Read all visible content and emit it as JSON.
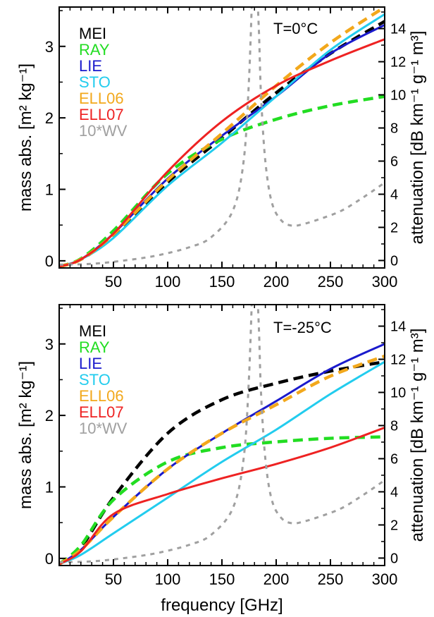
{
  "xlabel": "frequency [GHz]",
  "chart_data": [
    {
      "type": "line",
      "annotation": "T=0°C",
      "ylabel": "mass abs. [m² kg⁻¹]",
      "ylabel2": "attenuation [dB km⁻¹ g⁻¹ m³]",
      "xlim": [
        0,
        300
      ],
      "ylim": [
        -0.1,
        3.55
      ],
      "ylim2": [
        -0.45,
        15.3
      ],
      "xticks": [
        50,
        100,
        150,
        200,
        250,
        300
      ],
      "yticks": [
        0,
        1,
        2,
        3
      ],
      "yticks2": [
        0,
        2,
        4,
        6,
        8,
        10,
        12,
        14
      ],
      "grid": false,
      "legend_position": "top-left",
      "series": [
        {
          "name": "MEI",
          "color": "#000000",
          "dash": "long",
          "x": [
            0,
            20,
            50,
            100,
            150,
            200,
            250,
            300
          ],
          "y": [
            -0.08,
            0.02,
            0.35,
            1.1,
            1.72,
            2.35,
            2.9,
            3.35
          ]
        },
        {
          "name": "RAY",
          "color": "#22dd22",
          "dash": "long",
          "x": [
            0,
            20,
            50,
            100,
            150,
            200,
            250,
            300
          ],
          "y": [
            -0.08,
            0.03,
            0.42,
            1.22,
            1.7,
            1.98,
            2.17,
            2.3
          ]
        },
        {
          "name": "LIE",
          "color": "#1a1acc",
          "dash": "solid",
          "x": [
            0,
            20,
            50,
            100,
            150,
            200,
            250,
            300
          ],
          "y": [
            -0.08,
            0.02,
            0.38,
            1.15,
            1.75,
            2.3,
            2.9,
            3.3
          ]
        },
        {
          "name": "STO",
          "color": "#22ccee",
          "dash": "solid",
          "x": [
            0,
            20,
            50,
            100,
            150,
            200,
            250,
            300
          ],
          "y": [
            -0.08,
            0.02,
            0.32,
            1.05,
            1.65,
            2.3,
            2.95,
            3.45
          ]
        },
        {
          "name": "ELL06",
          "color": "#f2a81c",
          "dash": "long",
          "x": [
            0,
            20,
            50,
            100,
            150,
            200,
            250,
            300
          ],
          "y": [
            -0.08,
            0.02,
            0.37,
            1.13,
            1.78,
            2.45,
            3.05,
            3.55
          ]
        },
        {
          "name": "ELL07",
          "color": "#ee2222",
          "dash": "solid",
          "x": [
            0,
            20,
            50,
            100,
            150,
            200,
            250,
            300
          ],
          "y": [
            -0.08,
            0.02,
            0.38,
            1.25,
            1.95,
            2.45,
            2.8,
            3.1
          ]
        },
        {
          "name": "10*WV",
          "color": "#a0a0a0",
          "dash": "short",
          "axis": "right",
          "x": [
            0,
            30,
            60,
            90,
            120,
            140,
            160,
            170,
            175,
            179,
            181,
            184,
            186,
            190,
            196,
            205,
            215,
            225,
            240,
            260,
            280,
            300
          ],
          "y": [
            -0.25,
            -0.2,
            0.0,
            0.3,
            0.8,
            1.4,
            3.0,
            6.0,
            11.0,
            18.0,
            18.0,
            14.0,
            10.0,
            6.0,
            3.5,
            2.4,
            2.1,
            2.2,
            2.5,
            3.0,
            3.8,
            4.7
          ]
        }
      ]
    },
    {
      "type": "line",
      "annotation": "T=-25°C",
      "ylabel": "mass abs. [m² kg⁻¹]",
      "ylabel2": "attenuation [dB km⁻¹ g⁻¹ m³]",
      "xlim": [
        0,
        300
      ],
      "ylim": [
        -0.1,
        3.55
      ],
      "ylim2": [
        -0.45,
        15.3
      ],
      "xticks": [
        50,
        100,
        150,
        200,
        250,
        300
      ],
      "yticks": [
        0,
        1,
        2,
        3
      ],
      "yticks2": [
        0,
        2,
        4,
        6,
        8,
        10,
        12,
        14
      ],
      "grid": false,
      "legend_position": "top-left",
      "series": [
        {
          "name": "MEI",
          "color": "#000000",
          "dash": "long",
          "x": [
            0,
            20,
            50,
            100,
            150,
            200,
            250,
            300
          ],
          "y": [
            -0.08,
            0.15,
            0.85,
            1.75,
            2.22,
            2.45,
            2.62,
            2.75
          ]
        },
        {
          "name": "RAY",
          "color": "#22dd22",
          "dash": "long",
          "x": [
            0,
            20,
            50,
            100,
            150,
            200,
            250,
            300
          ],
          "y": [
            -0.08,
            0.18,
            0.82,
            1.35,
            1.55,
            1.63,
            1.68,
            1.7
          ]
        },
        {
          "name": "LIE",
          "color": "#1a1acc",
          "dash": "solid",
          "x": [
            0,
            20,
            50,
            100,
            150,
            200,
            250,
            300
          ],
          "y": [
            -0.08,
            0.12,
            0.58,
            1.25,
            1.75,
            2.2,
            2.65,
            3.0
          ]
        },
        {
          "name": "STO",
          "color": "#22ccee",
          "dash": "solid",
          "x": [
            0,
            20,
            50,
            100,
            150,
            200,
            250,
            300
          ],
          "y": [
            -0.08,
            0.05,
            0.35,
            0.85,
            1.35,
            1.8,
            2.3,
            2.75
          ]
        },
        {
          "name": "ELL06",
          "color": "#f2a81c",
          "dash": "long",
          "x": [
            0,
            20,
            50,
            100,
            150,
            200,
            250,
            300
          ],
          "y": [
            -0.08,
            0.12,
            0.58,
            1.25,
            1.75,
            2.15,
            2.55,
            2.83
          ]
        },
        {
          "name": "ELL07",
          "color": "#ee2222",
          "dash": "solid",
          "x": [
            0,
            20,
            50,
            100,
            150,
            200,
            250,
            300
          ],
          "y": [
            -0.08,
            0.1,
            0.62,
            0.9,
            1.12,
            1.32,
            1.55,
            1.83
          ]
        },
        {
          "name": "10*WV",
          "color": "#a0a0a0",
          "dash": "short",
          "axis": "right",
          "x": [
            0,
            30,
            60,
            90,
            120,
            140,
            160,
            170,
            175,
            179,
            181,
            184,
            186,
            190,
            196,
            205,
            215,
            225,
            240,
            260,
            280,
            300
          ],
          "y": [
            -0.25,
            -0.2,
            0.0,
            0.3,
            0.8,
            1.4,
            3.0,
            6.0,
            11.0,
            18.0,
            18.0,
            14.0,
            10.0,
            6.0,
            3.5,
            2.4,
            2.1,
            2.2,
            2.5,
            3.0,
            3.8,
            4.7
          ]
        }
      ]
    }
  ]
}
